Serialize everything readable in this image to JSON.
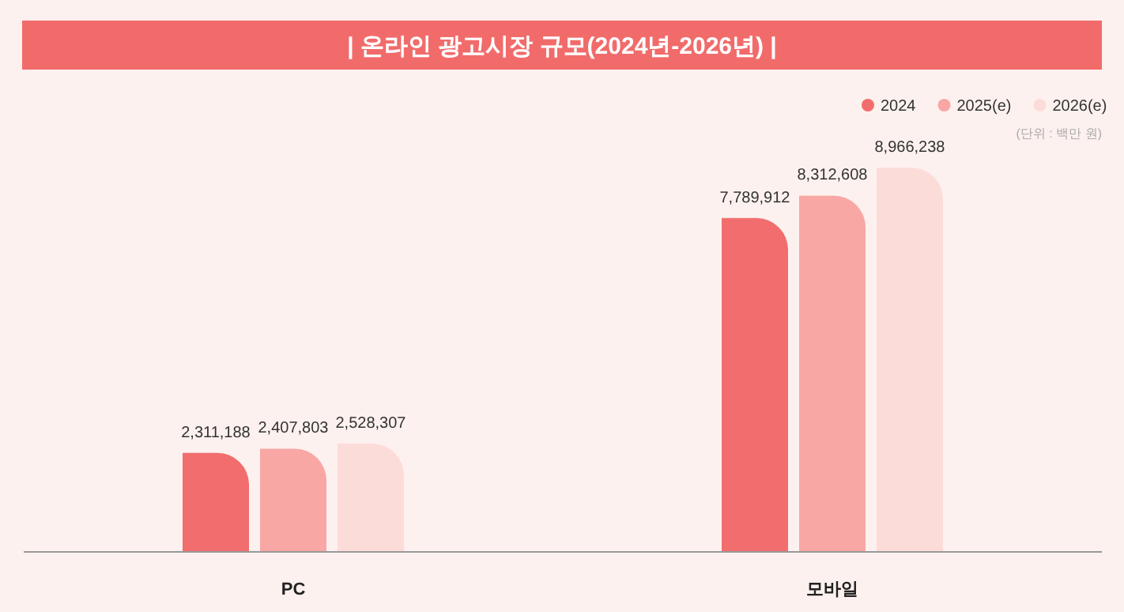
{
  "chart_data": {
    "type": "bar",
    "title": "| 온라인 광고시장 규모(2024년-2026년) |",
    "categories": [
      "PC",
      "모바일"
    ],
    "series": [
      {
        "name": "2024",
        "color": "#f26d6d",
        "values": [
          2311188,
          7789912
        ],
        "value_labels": [
          "2,311,188",
          "7,789,912"
        ]
      },
      {
        "name": "2025(e)",
        "color": "#f8a7a4",
        "values": [
          2407803,
          8312608
        ],
        "value_labels": [
          "2,407,803",
          "8,312,608"
        ]
      },
      {
        "name": "2026(e)",
        "color": "#fcdcd9",
        "values": [
          2528307,
          8966238
        ],
        "value_labels": [
          "2,528,307",
          "8,966,238"
        ]
      }
    ],
    "legend": "top right",
    "annotations": [
      "(단위 : 백만 원)"
    ]
  }
}
